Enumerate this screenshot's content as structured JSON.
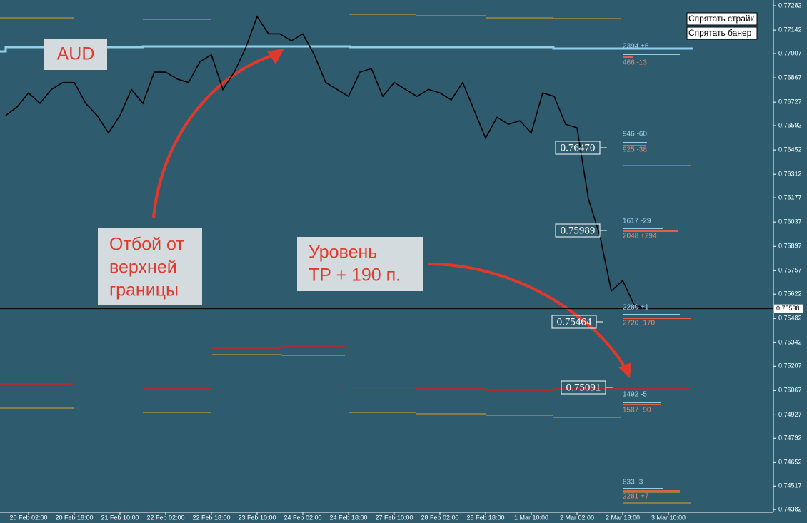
{
  "chart_data": {
    "type": "line",
    "categories": [
      null,
      null,
      "20 Feb 02:00",
      null,
      null,
      null,
      "20 Feb 18:00",
      null,
      null,
      null,
      "21 Feb 10:00",
      null,
      null,
      null,
      "22 Feb 02:00",
      null,
      null,
      null,
      "22 Feb 18:00",
      null,
      null,
      null,
      "23 Feb 10:00",
      null,
      null,
      null,
      "24 Feb 02:00",
      null,
      null,
      null,
      "24 Feb 18:00",
      null,
      null,
      null,
      "27 Feb 10:00",
      null,
      null,
      null,
      "28 Feb 02:00",
      null,
      null,
      null,
      "28 Feb 18:00",
      null,
      null,
      null,
      "1 Mar 10:00",
      null,
      null,
      null,
      "2 Mar 02:00",
      null,
      null,
      null,
      "2 Mar 18:00",
      null,
      null,
      null,
      "3 Mar 10:00"
    ],
    "values": [
      0.7665,
      0.767,
      0.7678,
      0.7672,
      0.768,
      0.7684,
      0.7684,
      0.7672,
      0.7665,
      0.7655,
      0.7665,
      0.768,
      0.7672,
      0.769,
      0.769,
      0.7686,
      0.7684,
      0.7696,
      0.77,
      0.768,
      0.769,
      0.7704,
      0.7722,
      0.7712,
      0.7712,
      0.7708,
      0.7712,
      0.77,
      0.7684,
      0.768,
      0.7676,
      0.769,
      0.7692,
      0.7676,
      0.7684,
      0.768,
      0.7676,
      0.768,
      0.7678,
      0.7674,
      0.7684,
      0.7668,
      0.7652,
      0.7664,
      0.766,
      0.7662,
      0.7655,
      0.7678,
      0.7676,
      0.766,
      0.7658,
      0.7617,
      0.7596,
      0.7564,
      0.757,
      0.7556,
      0.7554,
      null,
      null
    ],
    "color": "#000000",
    "ylim": [
      0.74366,
      0.77315
    ],
    "yticks": [
      0.77282,
      0.77142,
      0.77007,
      0.76867,
      0.76727,
      0.76592,
      0.76452,
      0.76312,
      0.76177,
      0.76037,
      0.75897,
      0.75757,
      0.75622,
      0.75482,
      0.75342,
      0.75207,
      0.75067,
      0.74927,
      0.74792,
      0.74652,
      0.74517,
      0.74382
    ],
    "current_price": 0.75538,
    "current_price_label": "0.75538",
    "price_boxes": [
      "0.76470",
      "0.75989",
      "0.75464",
      "0.75091"
    ],
    "side_labels": [
      "2394 +6",
      "466 -13",
      "946 -60",
      "925 -38",
      "1617 -29",
      "2048 +294",
      "2280 +1",
      "2720 -170",
      "1492 -5",
      "1587 -90",
      "833 -3",
      "2281 +7"
    ],
    "annotations": {
      "currency": "AUD",
      "rebound": [
        "Отбой от",
        "верхней",
        "границы"
      ],
      "target": [
        "Уровень",
        "TP + 190 п."
      ]
    },
    "buttons": [
      "Спрятать страйк",
      "Спрятать банер"
    ]
  }
}
